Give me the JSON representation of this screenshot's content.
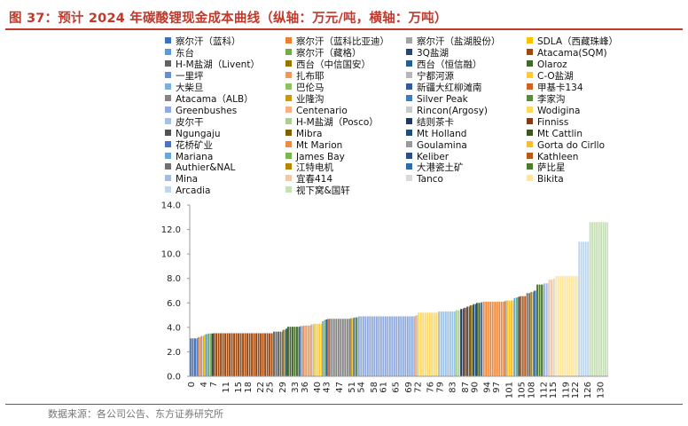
{
  "header": {
    "title": "图 37：预计 2024 年碳酸锂现金成本曲线（纵轴：万元/吨，横轴：万吨）"
  },
  "footer": {
    "source": "数据来源：各公司公告、东方证券研究所"
  },
  "chart_data": {
    "type": "bar",
    "title": "",
    "xlabel": "",
    "ylabel": "",
    "ylim": [
      0,
      14
    ],
    "yticks": [
      "0.0",
      "2.0",
      "4.0",
      "6.0",
      "8.0",
      "10.0",
      "12.0",
      "14.0"
    ],
    "x_ticks": [
      "0",
      "4",
      "7",
      "11",
      "15",
      "18",
      "22",
      "25",
      "29",
      "33",
      "36",
      "40",
      "43",
      "47",
      "51",
      "54",
      "58",
      "61",
      "65",
      "69",
      "72",
      "76",
      "79",
      "83",
      "87",
      "90",
      "94",
      "97",
      "101",
      "105",
      "108",
      "112",
      "115",
      "119",
      "122",
      "126",
      "130"
    ],
    "x_range": [
      0,
      133
    ],
    "grid": "none",
    "legend_placement": "top",
    "series": [
      {
        "name": "察尔汗（蓝科）",
        "x0": 0,
        "x1": 2.5,
        "value": 3.1,
        "color": "#3b6fc4"
      },
      {
        "name": "察尔汗（蓝科比亚迪）",
        "x0": 2.5,
        "x1": 3.5,
        "value": 3.2,
        "color": "#ed7d31"
      },
      {
        "name": "察尔汗（盐湖股份）",
        "x0": 3.5,
        "x1": 4.5,
        "value": 3.3,
        "color": "#a5a5a5"
      },
      {
        "name": "SDLA（西藏珠峰）",
        "x0": 4.5,
        "x1": 5.0,
        "value": 3.4,
        "color": "#ffc000"
      },
      {
        "name": "东台",
        "x0": 5.0,
        "x1": 5.8,
        "value": 3.45,
        "color": "#5b9bd5"
      },
      {
        "name": "察尔汗（藏格）",
        "x0": 5.8,
        "x1": 7.0,
        "value": 3.5,
        "color": "#70ad47"
      },
      {
        "name": "3Q盐湖",
        "x0": 7.0,
        "x1": 7.5,
        "value": 3.5,
        "color": "#264478"
      },
      {
        "name": "Atacama(SQM)",
        "x0": 7.5,
        "x1": 26.5,
        "value": 3.52,
        "color": "#9e480e"
      },
      {
        "name": "H-M盐湖（Livent）",
        "x0": 26.5,
        "x1": 29.5,
        "value": 3.65,
        "color": "#636363"
      },
      {
        "name": "西台（中信国安）",
        "x0": 29.5,
        "x1": 30.5,
        "value": 3.8,
        "color": "#997300"
      },
      {
        "name": "西台（恒信融）",
        "x0": 30.5,
        "x1": 31.0,
        "value": 3.9,
        "color": "#255e91"
      },
      {
        "name": "Olaroz",
        "x0": 31.0,
        "x1": 35.0,
        "value": 4.05,
        "color": "#43682b"
      },
      {
        "name": "一里坪",
        "x0": 35.0,
        "x1": 36.0,
        "value": 4.1,
        "color": "#698ed0"
      },
      {
        "name": "扎布耶",
        "x0": 36.0,
        "x1": 38.5,
        "value": 4.15,
        "color": "#f1975a"
      },
      {
        "name": "宁都河源",
        "x0": 38.5,
        "x1": 39.5,
        "value": 4.25,
        "color": "#b7b7b7"
      },
      {
        "name": "C-O盐湖",
        "x0": 39.5,
        "x1": 42.0,
        "value": 4.3,
        "color": "#ffcd33"
      },
      {
        "name": "大柴旦",
        "x0": 42.0,
        "x1": 42.6,
        "value": 4.5,
        "color": "#7cafdd"
      },
      {
        "name": "巴伦马",
        "x0": 42.6,
        "x1": 43.2,
        "value": 4.6,
        "color": "#8cc168"
      },
      {
        "name": "新疆大红柳滩南",
        "x0": 43.2,
        "x1": 43.7,
        "value": 4.65,
        "color": "#335aa1"
      },
      {
        "name": "甲基卡134",
        "x0": 43.7,
        "x1": 44.2,
        "value": 4.68,
        "color": "#d2622b"
      },
      {
        "name": "Atacama（ALB）",
        "x0": 44.2,
        "x1": 51.0,
        "value": 4.7,
        "color": "#848484"
      },
      {
        "name": "业隆沟",
        "x0": 51.0,
        "x1": 52.0,
        "value": 4.75,
        "color": "#cc9a00"
      },
      {
        "name": "Silver Peak",
        "x0": 52.0,
        "x1": 52.7,
        "value": 4.8,
        "color": "#3b7ebf"
      },
      {
        "name": "李家沟",
        "x0": 52.7,
        "x1": 53.5,
        "value": 4.82,
        "color": "#5a8a39"
      },
      {
        "name": "Greenbushes",
        "x0": 53.5,
        "x1": 71.5,
        "value": 4.9,
        "color": "#8faadc"
      },
      {
        "name": "Centenario",
        "x0": 71.5,
        "x1": 72.0,
        "value": 4.95,
        "color": "#f4b183"
      },
      {
        "name": "Rincon(Argosy)",
        "x0": 72.0,
        "x1": 72.5,
        "value": 5.0,
        "color": "#c9c9c9"
      },
      {
        "name": "Wodigina",
        "x0": 72.5,
        "x1": 79.0,
        "value": 5.2,
        "color": "#ffd966"
      },
      {
        "name": "皮尔干",
        "x0": 79.0,
        "x1": 84.5,
        "value": 5.3,
        "color": "#9dc3e6"
      },
      {
        "name": "H-M盐湖（Posco）",
        "x0": 84.5,
        "x1": 86.0,
        "value": 5.4,
        "color": "#a9d18e"
      },
      {
        "name": "结则茶卡",
        "x0": 86.0,
        "x1": 87.0,
        "value": 5.5,
        "color": "#203864"
      },
      {
        "name": "Finniss",
        "x0": 87.0,
        "x1": 88.0,
        "value": 5.6,
        "color": "#843c0c"
      },
      {
        "name": "Ngungaju",
        "x0": 88.0,
        "x1": 89.0,
        "value": 5.7,
        "color": "#525252"
      },
      {
        "name": "Mibra",
        "x0": 89.0,
        "x1": 90.0,
        "value": 5.8,
        "color": "#7f6000"
      },
      {
        "name": "Mt Holland",
        "x0": 90.0,
        "x1": 91.0,
        "value": 5.9,
        "color": "#1f4e79"
      },
      {
        "name": "Mt Cattlin",
        "x0": 91.0,
        "x1": 92.5,
        "value": 6.0,
        "color": "#385723"
      },
      {
        "name": "花桥矿业",
        "x0": 92.5,
        "x1": 93.2,
        "value": 6.05,
        "color": "#4a74c9"
      },
      {
        "name": "Mt Marion",
        "x0": 93.2,
        "x1": 100.0,
        "value": 6.1,
        "color": "#f08a3f"
      },
      {
        "name": "Goulamina",
        "x0": 100.0,
        "x1": 100.6,
        "value": 6.15,
        "color": "#9a9a9a"
      },
      {
        "name": "Gorta do Cirllo",
        "x0": 100.6,
        "x1": 103.0,
        "value": 6.2,
        "color": "#f5c02a"
      },
      {
        "name": "Mariana",
        "x0": 103.0,
        "x1": 103.8,
        "value": 6.4,
        "color": "#6aa6d8"
      },
      {
        "name": "James Bay",
        "x0": 103.8,
        "x1": 104.4,
        "value": 6.45,
        "color": "#7ab650"
      },
      {
        "name": "Keliber",
        "x0": 104.4,
        "x1": 104.9,
        "value": 6.5,
        "color": "#2b4e8c"
      },
      {
        "name": "Kathleen",
        "x0": 104.9,
        "x1": 107.0,
        "value": 6.55,
        "color": "#b55a1a"
      },
      {
        "name": "Authier&NAL",
        "x0": 107.0,
        "x1": 108.3,
        "value": 6.8,
        "color": "#707070"
      },
      {
        "name": "江特电机",
        "x0": 108.3,
        "x1": 109.3,
        "value": 6.9,
        "color": "#b38600"
      },
      {
        "name": "大港瓷土矿",
        "x0": 109.3,
        "x1": 110.2,
        "value": 7.0,
        "color": "#2f6ba8"
      },
      {
        "name": "萨比星",
        "x0": 110.2,
        "x1": 112.5,
        "value": 7.5,
        "color": "#4e7a30"
      },
      {
        "name": "Mina",
        "x0": 112.5,
        "x1": 114.0,
        "value": 7.6,
        "color": "#a4bbe4"
      },
      {
        "name": "宜春414",
        "x0": 114.0,
        "x1": 115.5,
        "value": 7.9,
        "color": "#f7c6a3"
      },
      {
        "name": "Tanco",
        "x0": 115.5,
        "x1": 116.2,
        "value": 8.0,
        "color": "#d9d9d9"
      },
      {
        "name": "Bikita",
        "x0": 116.2,
        "x1": 123.5,
        "value": 8.2,
        "color": "#ffe699"
      },
      {
        "name": "Arcadia",
        "x0": 123.5,
        "x1": 127.0,
        "value": 11.0,
        "color": "#bdd7ee"
      },
      {
        "name": "视下窝&国轩",
        "x0": 127.0,
        "x1": 133.0,
        "value": 12.6,
        "color": "#c5e0b4"
      }
    ]
  }
}
